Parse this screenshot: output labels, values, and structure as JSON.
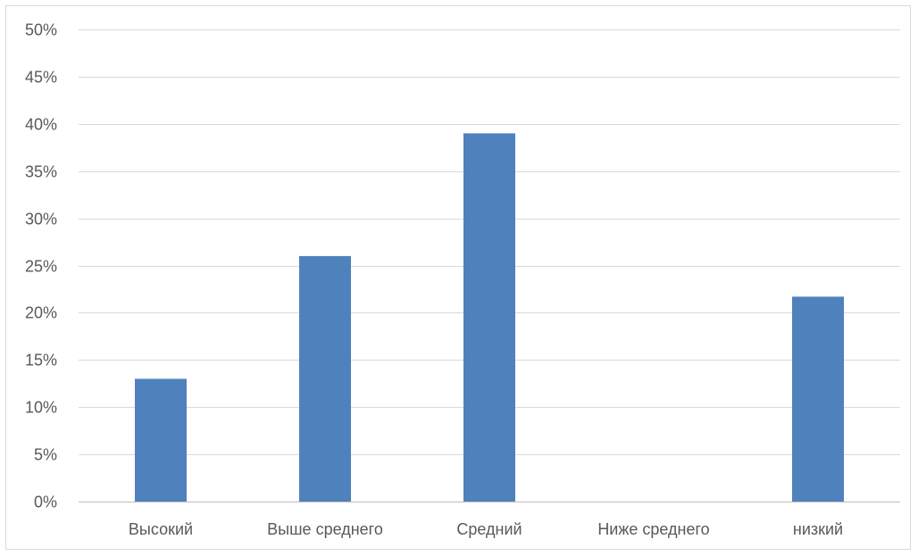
{
  "colors": {
    "bar": "#4f81bd",
    "gridline": "#d9d9d9",
    "axis": "#bfbfbf",
    "text": "#595959"
  },
  "chart_data": {
    "type": "bar",
    "title": "",
    "xlabel": "",
    "ylabel": "",
    "categories": [
      "Высокий",
      "Выше среднего",
      "Средний",
      "Ниже среднего",
      "низкий"
    ],
    "series": [
      {
        "values": [
          13,
          26,
          39,
          0,
          21.7
        ]
      }
    ],
    "ylim": [
      0,
      50
    ],
    "y_ticks": [
      0,
      5,
      10,
      15,
      20,
      25,
      30,
      35,
      40,
      45,
      50
    ],
    "y_tick_labels": [
      "0%",
      "5%",
      "10%",
      "15%",
      "20%",
      "25%",
      "30%",
      "35%",
      "40%",
      "45%",
      "50%"
    ],
    "grid": true,
    "legend": "none"
  }
}
